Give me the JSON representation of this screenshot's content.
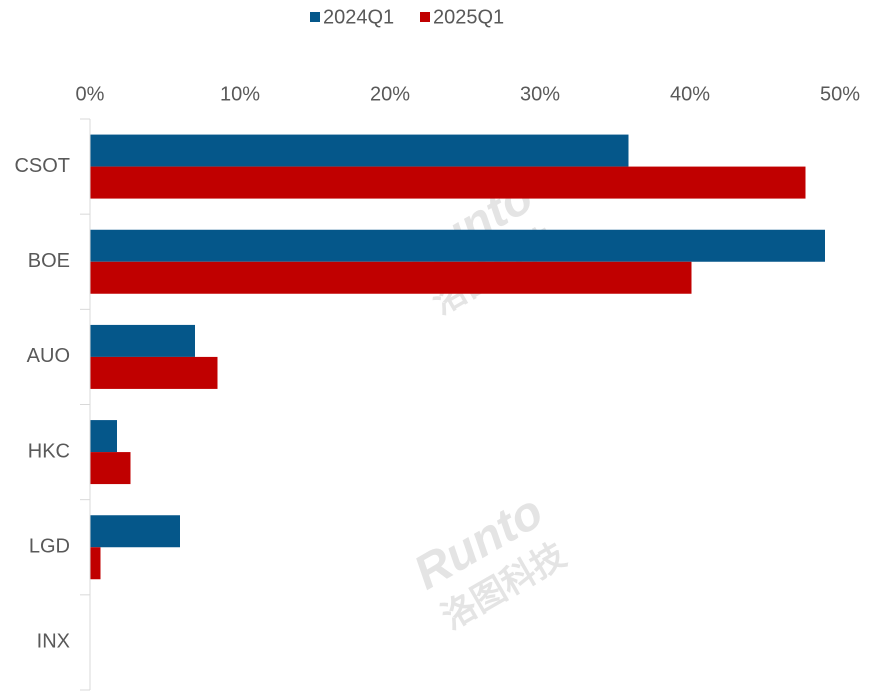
{
  "chart_data": {
    "type": "bar",
    "orientation": "horizontal",
    "categories": [
      "CSOT",
      "BOE",
      "AUO",
      "HKC",
      "LGD",
      "INX"
    ],
    "series": [
      {
        "name": "2024Q1",
        "color": "#05578a",
        "values": [
          35.9,
          49.0,
          7.0,
          1.8,
          6.0,
          0
        ]
      },
      {
        "name": "2025Q1",
        "color": "#c00000",
        "values": [
          47.7,
          40.1,
          8.5,
          2.7,
          0.7,
          0
        ]
      }
    ],
    "xlim": [
      0,
      50
    ],
    "xticks": [
      {
        "value": 0,
        "label": "0%"
      },
      {
        "value": 10,
        "label": "10%"
      },
      {
        "value": 20,
        "label": "20%"
      },
      {
        "value": 30,
        "label": "30%"
      },
      {
        "value": 40,
        "label": "40%"
      },
      {
        "value": 50,
        "label": "50%"
      }
    ],
    "legend": "top",
    "watermark": {
      "brand": "Runto",
      "cn": "洛图科技"
    }
  }
}
